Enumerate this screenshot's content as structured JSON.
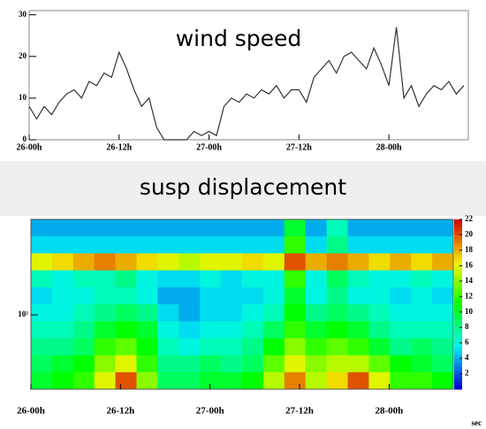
{
  "chart_data": [
    {
      "type": "line",
      "title": "wind speed",
      "x": [
        0,
        1,
        2,
        3,
        4,
        5,
        6,
        7,
        8,
        9,
        10,
        11,
        12,
        13,
        14,
        15,
        16,
        17,
        18,
        19,
        20,
        21,
        22,
        23,
        24,
        25,
        26,
        27,
        28,
        29,
        30,
        31,
        32,
        33,
        34,
        35,
        36,
        37,
        38,
        39,
        40,
        41,
        42,
        43,
        44,
        45,
        46,
        47,
        48,
        49,
        50,
        51,
        52,
        53,
        54,
        55,
        56,
        57,
        58
      ],
      "series": [
        {
          "name": "wind speed",
          "color": "#333333",
          "values": [
            8,
            5,
            8,
            6,
            9,
            11,
            12,
            10,
            14,
            13,
            16,
            15,
            21,
            17,
            12,
            8,
            10,
            3,
            0,
            0,
            0,
            0,
            2,
            1,
            2,
            1,
            8,
            10,
            9,
            11,
            10,
            12,
            11,
            13,
            10,
            12,
            12,
            9,
            15,
            17,
            19,
            16,
            20,
            21,
            19,
            17,
            22,
            18,
            13,
            27,
            10,
            13,
            8,
            11,
            13,
            12,
            14,
            11,
            13
          ]
        }
      ],
      "xlim": [
        0,
        58.6
      ],
      "xticks": [
        {
          "value": 0,
          "label": "26-00h"
        },
        {
          "value": 12,
          "label": "26-12h"
        },
        {
          "value": 24,
          "label": "27-00h"
        },
        {
          "value": 36,
          "label": "27-12h"
        },
        {
          "value": 48,
          "label": "28-00h"
        }
      ],
      "ylim": [
        0,
        31
      ],
      "yticks": [
        0,
        10,
        20,
        30
      ]
    },
    {
      "type": "heatmap",
      "title": "susp displacement",
      "xlabel": "sec",
      "z": [
        [
          4,
          4,
          4,
          4,
          4,
          4,
          4,
          4,
          4,
          4,
          4,
          4,
          10,
          4,
          7,
          4,
          4,
          4,
          4,
          4
        ],
        [
          5,
          5,
          5,
          5,
          5,
          5,
          5,
          5,
          5,
          5,
          5,
          5,
          12,
          5,
          8,
          5,
          5,
          5,
          5,
          5
        ],
        [
          16,
          17,
          18,
          19,
          18,
          17,
          16,
          15,
          16,
          16,
          17,
          16,
          20,
          18,
          19,
          18,
          17,
          18,
          17,
          18
        ],
        [
          7,
          6,
          7,
          7,
          8,
          6,
          5,
          5,
          6,
          5,
          6,
          6,
          12,
          6,
          9,
          7,
          6,
          6,
          7,
          6
        ],
        [
          5,
          6,
          6,
          7,
          7,
          6,
          4,
          4,
          5,
          5,
          5,
          6,
          10,
          6,
          8,
          6,
          6,
          5,
          6,
          5
        ],
        [
          6,
          6,
          7,
          8,
          9,
          8,
          5,
          4,
          5,
          5,
          6,
          7,
          11,
          8,
          9,
          8,
          7,
          6,
          6,
          6
        ],
        [
          7,
          7,
          8,
          10,
          11,
          10,
          6,
          5,
          6,
          6,
          7,
          9,
          12,
          10,
          11,
          10,
          8,
          7,
          7,
          7
        ],
        [
          8,
          8,
          9,
          12,
          13,
          11,
          7,
          6,
          7,
          7,
          8,
          11,
          14,
          12,
          13,
          12,
          10,
          8,
          9,
          8
        ],
        [
          9,
          10,
          11,
          14,
          16,
          12,
          8,
          8,
          9,
          8,
          9,
          13,
          16,
          14,
          15,
          15,
          13,
          11,
          10,
          9
        ],
        [
          10,
          11,
          12,
          16,
          20,
          14,
          9,
          9,
          10,
          10,
          11,
          15,
          19,
          15,
          17,
          20,
          16,
          12,
          12,
          11
        ]
      ],
      "xlim": [
        0,
        56.6
      ],
      "xticks": [
        {
          "value": 0,
          "label": "26-00h"
        },
        {
          "value": 12,
          "label": "26-12h"
        },
        {
          "value": 24,
          "label": "27-00h"
        },
        {
          "value": 36,
          "label": "27-12h"
        },
        {
          "value": 48,
          "label": "28-00h"
        }
      ],
      "ylim": [
        40,
        325
      ],
      "log_y": true,
      "yticks": [
        {
          "value": 100,
          "label": "10²"
        }
      ],
      "zlim": [
        0,
        22
      ],
      "zticks": [
        2,
        4,
        6,
        8,
        10,
        12,
        14,
        16,
        18,
        20,
        22
      ]
    }
  ]
}
